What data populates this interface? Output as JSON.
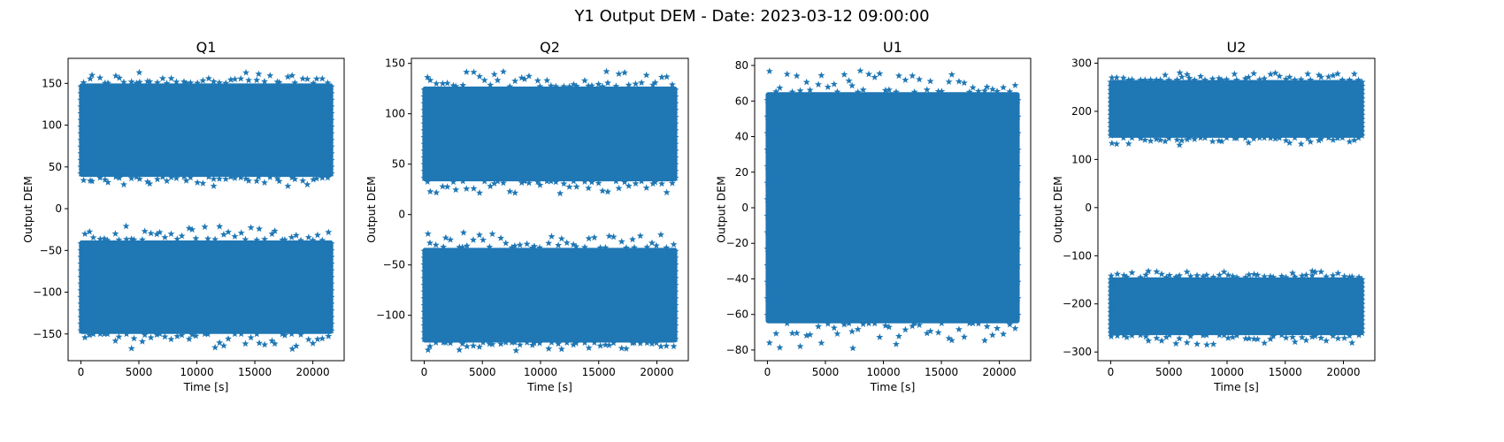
{
  "figure": {
    "suptitle": "Y1 Output DEM - Date: 2023-03-12 09:00:00",
    "series_color": "#1f77b4",
    "marker": "star"
  },
  "chart_data": [
    {
      "type": "scatter",
      "title": "Q1",
      "xlabel": "Time [s]",
      "ylabel": "Output DEM",
      "xlim": [
        -1100,
        22700
      ],
      "ylim": [
        -182,
        180
      ],
      "xticks": [
        0,
        5000,
        10000,
        15000,
        20000
      ],
      "yticks": [
        -150,
        -100,
        -50,
        0,
        50,
        100,
        150
      ],
      "grid": false,
      "x_range": [
        0,
        21600
      ],
      "bands": [
        {
          "low": 38,
          "high": 150,
          "min": 27,
          "max": 163
        },
        {
          "low": -150,
          "high": -38,
          "min": -168,
          "max": -21
        }
      ]
    },
    {
      "type": "scatter",
      "title": "Q2",
      "xlabel": "Time [s]",
      "ylabel": "Output DEM",
      "xlim": [
        -1100,
        22700
      ],
      "ylim": [
        -145,
        155
      ],
      "xticks": [
        0,
        5000,
        10000,
        15000,
        20000
      ],
      "yticks": [
        -100,
        -50,
        0,
        50,
        100,
        150
      ],
      "grid": false,
      "x_range": [
        0,
        21600
      ],
      "bands": [
        {
          "low": 33,
          "high": 127,
          "min": 21,
          "max": 142
        },
        {
          "low": -127,
          "high": -33,
          "min": -135,
          "max": -18
        }
      ]
    },
    {
      "type": "scatter",
      "title": "U1",
      "xlabel": "Time [s]",
      "ylabel": "Output DEM",
      "xlim": [
        -1100,
        22700
      ],
      "ylim": [
        -86,
        84
      ],
      "xticks": [
        0,
        5000,
        10000,
        15000,
        20000
      ],
      "yticks": [
        -80,
        -60,
        -40,
        -20,
        0,
        20,
        40,
        60,
        80
      ],
      "grid": false,
      "x_range": [
        0,
        21600
      ],
      "bands": [
        {
          "low": -65,
          "high": 65,
          "min": -79,
          "max": 77
        }
      ]
    },
    {
      "type": "scatter",
      "title": "U2",
      "xlabel": "Time [s]",
      "ylabel": "Output DEM",
      "xlim": [
        -1100,
        22700
      ],
      "ylim": [
        -318,
        310
      ],
      "xticks": [
        0,
        5000,
        10000,
        15000,
        20000
      ],
      "yticks": [
        -300,
        -200,
        -100,
        0,
        100,
        200,
        300
      ],
      "grid": false,
      "x_range": [
        0,
        21600
      ],
      "bands": [
        {
          "low": 145,
          "high": 265,
          "min": 130,
          "max": 280
        },
        {
          "low": -265,
          "high": -145,
          "min": -285,
          "max": -132
        }
      ]
    }
  ]
}
